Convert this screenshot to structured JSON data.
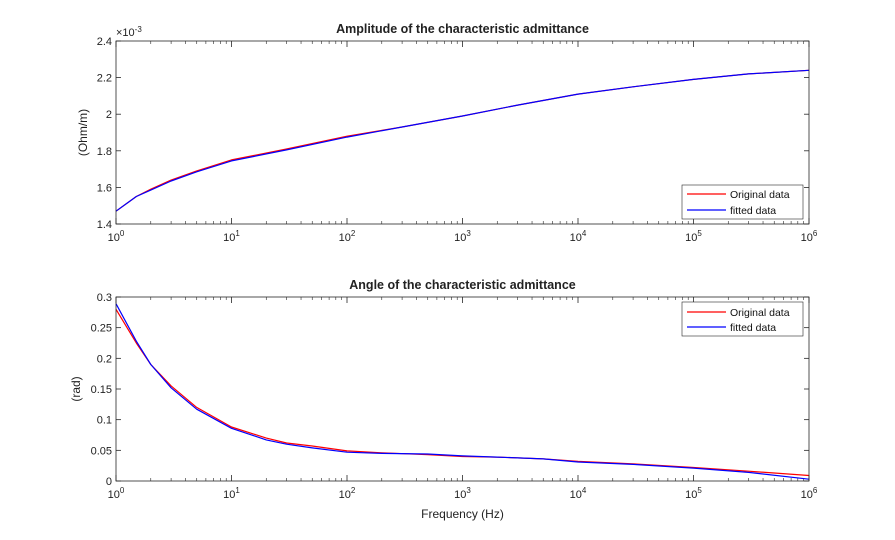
{
  "chart_data": [
    {
      "type": "line",
      "title": "Amplitude of the characteristic admittance",
      "xlabel": "",
      "ylabel": "(Ohm/m)",
      "xscale": "log",
      "xlim": [
        1,
        1000000
      ],
      "ylim": [
        1.4,
        2.4
      ],
      "y_multiplier": "×10",
      "y_multiplier_exp": "-3",
      "yticks": [
        "1.4",
        "1.6",
        "1.8",
        "2",
        "2.2",
        "2.4"
      ],
      "xticks": [
        {
          "base": "10",
          "exp": "0"
        },
        {
          "base": "10",
          "exp": "1"
        },
        {
          "base": "10",
          "exp": "2"
        },
        {
          "base": "10",
          "exp": "3"
        },
        {
          "base": "10",
          "exp": "4"
        },
        {
          "base": "10",
          "exp": "5"
        },
        {
          "base": "10",
          "exp": "6"
        }
      ],
      "legend_position": "bottom-right",
      "series": [
        {
          "name": "Original data",
          "color": "#ff0000",
          "x": [
            1,
            1.5,
            2,
            3,
            5,
            10,
            30,
            100,
            300,
            1000,
            3000,
            10000,
            30000,
            100000,
            300000,
            1000000
          ],
          "values": [
            1.47,
            1.55,
            1.59,
            1.64,
            1.69,
            1.75,
            1.81,
            1.88,
            1.93,
            1.99,
            2.05,
            2.11,
            2.15,
            2.19,
            2.22,
            2.24
          ]
        },
        {
          "name": "fitted data",
          "color": "#0000ff",
          "x": [
            1,
            1.5,
            2,
            3,
            5,
            10,
            30,
            100,
            300,
            1000,
            3000,
            10000,
            30000,
            100000,
            300000,
            1000000
          ],
          "values": [
            1.47,
            1.55,
            1.585,
            1.635,
            1.685,
            1.745,
            1.805,
            1.875,
            1.93,
            1.99,
            2.05,
            2.11,
            2.15,
            2.19,
            2.22,
            2.24
          ]
        }
      ]
    },
    {
      "type": "line",
      "title": "Angle of the characteristic admittance",
      "xlabel": "Frequency (Hz)",
      "ylabel": "(rad)",
      "xscale": "log",
      "xlim": [
        1,
        1000000
      ],
      "ylim": [
        0,
        0.3
      ],
      "yticks": [
        "0",
        "0.05",
        "0.1",
        "0.15",
        "0.2",
        "0.25",
        "0.3"
      ],
      "xticks": [
        {
          "base": "10",
          "exp": "0"
        },
        {
          "base": "10",
          "exp": "1"
        },
        {
          "base": "10",
          "exp": "2"
        },
        {
          "base": "10",
          "exp": "3"
        },
        {
          "base": "10",
          "exp": "4"
        },
        {
          "base": "10",
          "exp": "5"
        },
        {
          "base": "10",
          "exp": "6"
        }
      ],
      "legend_position": "top-right",
      "series": [
        {
          "name": "Original data",
          "color": "#ff0000",
          "x": [
            1,
            1.5,
            2,
            3,
            5,
            10,
            20,
            30,
            50,
            100,
            200,
            500,
            1000,
            2000,
            5000,
            10000,
            30000,
            100000,
            300000,
            1000000
          ],
          "values": [
            0.28,
            0.225,
            0.19,
            0.155,
            0.12,
            0.088,
            0.07,
            0.062,
            0.057,
            0.049,
            0.046,
            0.043,
            0.04,
            0.039,
            0.036,
            0.032,
            0.028,
            0.022,
            0.016,
            0.009
          ]
        },
        {
          "name": "fitted data",
          "color": "#0000ff",
          "x": [
            1,
            1.5,
            2,
            3,
            5,
            10,
            20,
            30,
            50,
            100,
            200,
            500,
            1000,
            2000,
            5000,
            10000,
            30000,
            100000,
            300000,
            1000000
          ],
          "values": [
            0.289,
            0.228,
            0.19,
            0.152,
            0.117,
            0.086,
            0.067,
            0.06,
            0.054,
            0.047,
            0.045,
            0.044,
            0.041,
            0.039,
            0.036,
            0.031,
            0.027,
            0.021,
            0.014,
            0.003
          ]
        }
      ]
    }
  ]
}
